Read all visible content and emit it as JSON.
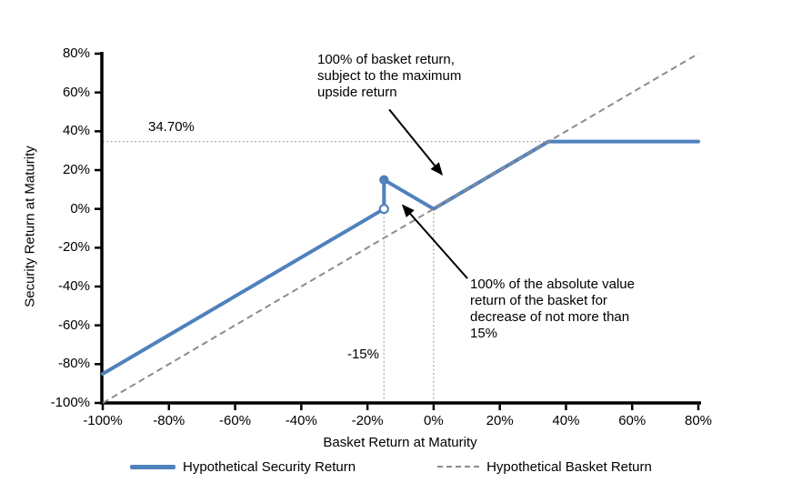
{
  "chart_data": {
    "type": "line",
    "title": "",
    "xlabel": "Basket Return at Maturity",
    "ylabel": "Security Return at Maturity",
    "xlim": [
      -100,
      80
    ],
    "ylim": [
      -100,
      80
    ],
    "grid": false,
    "x_tick_values": [
      -100,
      -80,
      -60,
      -40,
      -20,
      0,
      20,
      40,
      60,
      80
    ],
    "x_tick_labels": [
      "-100%",
      "-80%",
      "-60%",
      "-40%",
      "-20%",
      "0%",
      "20%",
      "40%",
      "60%",
      "80%"
    ],
    "y_tick_values": [
      80,
      60,
      40,
      20,
      0,
      -20,
      -40,
      -60,
      -80,
      -100
    ],
    "y_tick_labels": [
      "80%",
      "60%",
      "40%",
      "20%",
      "0%",
      "-20%",
      "-40%",
      "-60%",
      "-80%",
      "-100%"
    ],
    "series": [
      {
        "name": "Hypothetical Security Return",
        "color": "#4F81BD",
        "line_style": "solid",
        "line_width": 4,
        "segments": [
          {
            "points": [
              [
                -100,
                -85
              ],
              [
                -15,
                0
              ]
            ]
          },
          {
            "points": [
              [
                -15,
                0
              ],
              [
                -15,
                15
              ]
            ]
          },
          {
            "points": [
              [
                -15,
                15
              ],
              [
                0,
                0
              ],
              [
                34.7,
                34.7
              ],
              [
                80,
                34.7
              ]
            ]
          }
        ],
        "markers": [
          {
            "x": -15,
            "y": 0,
            "style": "open"
          },
          {
            "x": -15,
            "y": 15,
            "style": "filled"
          }
        ]
      },
      {
        "name": "Hypothetical Basket Return",
        "color": "#8C8C8C",
        "line_style": "dashed",
        "line_width": 2,
        "segments": [
          {
            "points": [
              [
                -100,
                -100
              ],
              [
                80,
                80
              ]
            ]
          }
        ],
        "markers": []
      }
    ],
    "reference_lines": [
      {
        "orientation": "horizontal",
        "value": 34.7,
        "span": [
          -100,
          34.7
        ],
        "label": "34.70%"
      },
      {
        "orientation": "vertical",
        "value": -15,
        "span": [
          -100,
          0
        ],
        "label": "-15%"
      },
      {
        "orientation": "vertical",
        "value": 0,
        "span": [
          -100,
          0
        ],
        "label": ""
      }
    ],
    "annotations": [
      {
        "text": "100% of basket return,\nsubject to the maximum\nupside return",
        "arrow": {
          "from": [
            -13.4,
            51.2
          ],
          "to": [
            2.5,
            17.8
          ]
        }
      },
      {
        "text": "100% of the absolute value\nreturn of the basket for\ndecrease of not more than\n15%",
        "arrow": {
          "from": [
            10.2,
            -35.8
          ],
          "to": [
            -9.3,
            1.8
          ]
        }
      }
    ],
    "legend": {
      "position": "bottom",
      "entries": [
        "Hypothetical Security Return",
        "Hypothetical Basket Return"
      ]
    },
    "colors": {
      "axis": "#000000",
      "reference_dotted": "#ababab",
      "annotation_arrow": "#000000"
    }
  }
}
